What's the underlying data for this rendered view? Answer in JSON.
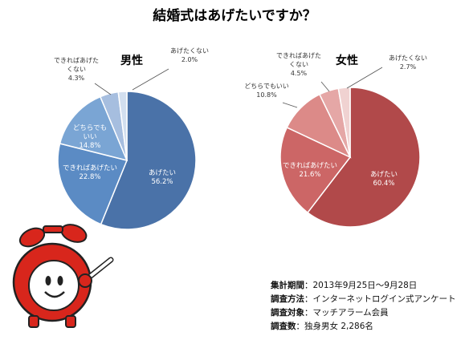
{
  "title": "結婚式はあげたいですか？",
  "colors": {
    "male": [
      "#4a72a8",
      "#5b8bc4",
      "#7aa5d4",
      "#a6bedf",
      "#d2dfef"
    ],
    "female": [
      "#b1494a",
      "#cc6666",
      "#dc8a88",
      "#e5a7a6",
      "#f0d2d1"
    ],
    "mascot_red": "#d8261c"
  },
  "chart_data": [
    {
      "type": "pie",
      "title": "男性",
      "categories": [
        "あげたい",
        "できればあげたい",
        "どちらでもいい",
        "できればあげたくない",
        "あげたくない"
      ],
      "values": [
        56.2,
        22.8,
        14.8,
        4.3,
        2.0
      ],
      "labels": [
        "あげたい\n56.2%",
        "できればあげたい\n22.8%",
        "どちらでも\nいい\n14.8%",
        "できればあげた\nくない\n4.3%",
        "あげたくない\n2.0%"
      ]
    },
    {
      "type": "pie",
      "title": "女性",
      "categories": [
        "あげたい",
        "できればあげたい",
        "どちらでもいい",
        "できればあげたくない",
        "あげたくない"
      ],
      "values": [
        60.4,
        21.6,
        10.8,
        4.5,
        2.7
      ],
      "labels": [
        "あげたい\n60.4%",
        "できればあげたい\n21.6%",
        "どちらでもいい\n10.8%",
        "できればあげた\nくない\n4.5%",
        "あげたくない\n2.7%"
      ]
    }
  ],
  "survey_info": [
    {
      "key": "集計期間",
      "value": "2013年9月25日～9月28日"
    },
    {
      "key": "調査方法",
      "value": "インターネットログイン式アンケート"
    },
    {
      "key": "調査対象",
      "value": "マッチアラーム会員"
    },
    {
      "key": "調査数",
      "value": "独身男女 2,286名"
    }
  ]
}
